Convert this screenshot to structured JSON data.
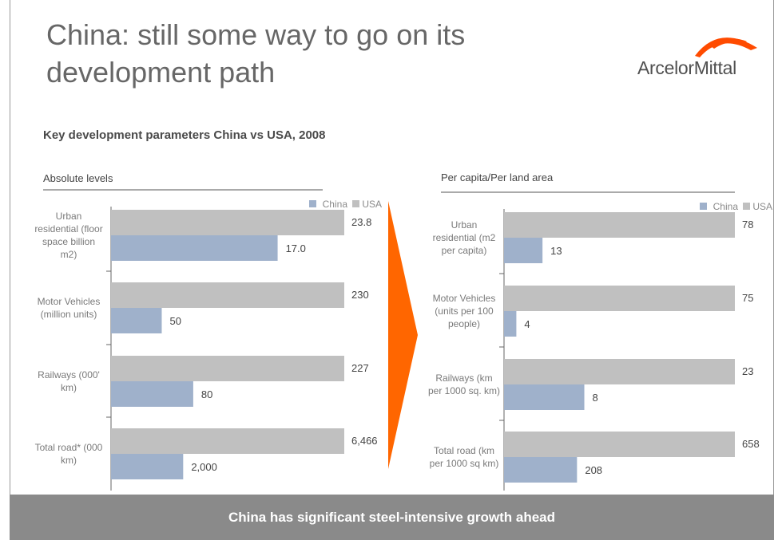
{
  "slide": {
    "title": "China: still some way to go on its development path",
    "subtitle": "Key development parameters China vs USA, 2008",
    "footer": "China has significant steel-intensive growth ahead"
  },
  "logo": {
    "text": "ArcelorMittal",
    "accent_color": "#ff4b00"
  },
  "colors": {
    "china": "#9fb1cb",
    "usa": "#c0c0c0",
    "arrow": "#ff6600"
  },
  "chart_data": [
    {
      "type": "bar",
      "orientation": "horizontal",
      "title": "Absolute levels",
      "legend": [
        "China",
        "USA"
      ],
      "legend_position": "top-right",
      "categories": [
        [
          "Urban",
          "residential (floor",
          "space billion",
          "m2)"
        ],
        [
          "Motor Vehicles",
          "(million units)"
        ],
        [
          "Railways (000'",
          "km)"
        ],
        [
          "Total road* (000",
          "km)"
        ]
      ],
      "series": [
        {
          "name": "USA",
          "values": [
            23.8,
            230,
            227,
            6466
          ],
          "labels": [
            "23.8",
            "230",
            "227",
            "6,466"
          ]
        },
        {
          "name": "China",
          "values": [
            17.0,
            50,
            80,
            2000
          ],
          "labels": [
            "17.0",
            "50",
            "80",
            "2,000"
          ]
        }
      ]
    },
    {
      "type": "bar",
      "orientation": "horizontal",
      "title": "Per capita/Per land area",
      "legend": [
        "China",
        "USA"
      ],
      "legend_position": "top-right",
      "categories": [
        [
          "Urban",
          "residential (m2",
          "per capita)"
        ],
        [
          "Motor Vehicles",
          "(units per 100",
          "people)"
        ],
        [
          "Railways (km",
          "per 1000 sq. km)"
        ],
        [
          "Total road (km",
          "per 1000 sq km)"
        ]
      ],
      "series": [
        {
          "name": "USA",
          "values": [
            78,
            75,
            23,
            658
          ],
          "labels": [
            "78",
            "75",
            "23",
            "658"
          ]
        },
        {
          "name": "China",
          "values": [
            13,
            4,
            8,
            208
          ],
          "labels": [
            "13",
            "4",
            "8",
            "208"
          ]
        }
      ]
    }
  ]
}
